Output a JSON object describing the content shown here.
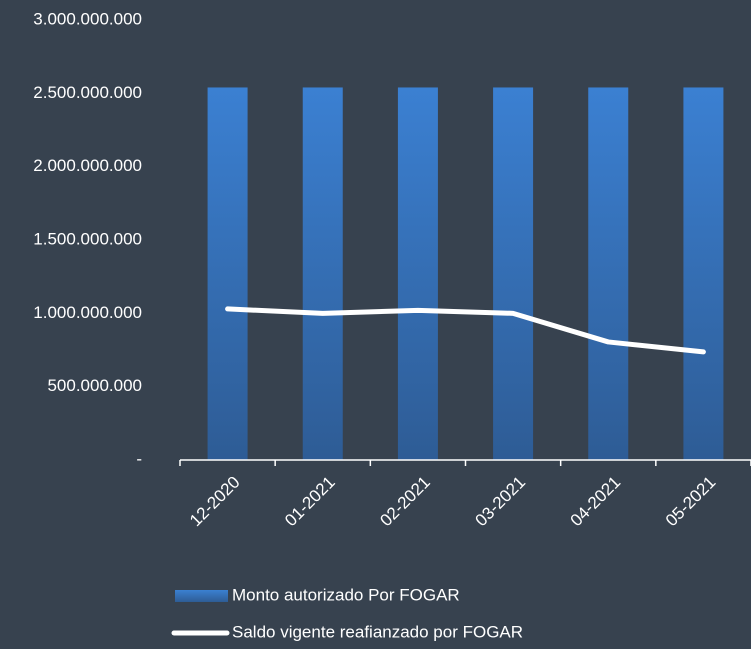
{
  "chart_data": {
    "type": "bar_line",
    "categories": [
      "12-2020",
      "01-2021",
      "02-2021",
      "03-2021",
      "04-2021",
      "05-2021"
    ],
    "series": [
      {
        "name": "Monto autorizado Por FOGAR",
        "type": "bar",
        "color": "#3a7bc8",
        "values": [
          2540000000,
          2540000000,
          2540000000,
          2540000000,
          2540000000,
          2540000000
        ]
      },
      {
        "name": "Saldo vigente reafianzado por FOGAR",
        "type": "line",
        "color": "#ffffff",
        "values": [
          1030000000,
          1000000000,
          1020000000,
          1000000000,
          805000000,
          737000000
        ]
      }
    ],
    "ylim": [
      0,
      3000000000
    ],
    "yticks": [
      {
        "value": 0,
        "label": "-"
      },
      {
        "value": 500000000,
        "label": "500.000.000"
      },
      {
        "value": 1000000000,
        "label": "1.000.000.000"
      },
      {
        "value": 1500000000,
        "label": "1.500.000.000"
      },
      {
        "value": 2000000000,
        "label": "2.000.000.000"
      },
      {
        "value": 2500000000,
        "label": "2.500.000.000"
      },
      {
        "value": 3000000000,
        "label": "3.000.000.000"
      }
    ],
    "grid": false,
    "legend": "bottom"
  }
}
